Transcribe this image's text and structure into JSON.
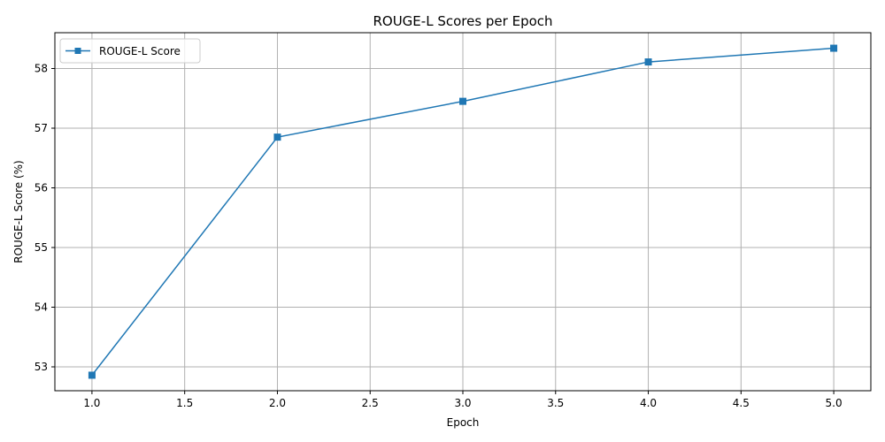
{
  "chart_data": {
    "type": "line",
    "title": "ROUGE-L Scores per Epoch",
    "xlabel": "Epoch",
    "ylabel": "ROUGE-L Score (%)",
    "x": [
      1,
      2,
      3,
      4,
      5
    ],
    "series": [
      {
        "name": "ROUGE-L Score",
        "values": [
          52.86,
          56.85,
          57.45,
          58.11,
          58.34
        ],
        "color": "#1f77b4",
        "marker": "square"
      }
    ],
    "xlim": [
      0.8,
      5.2
    ],
    "ylim": [
      52.6,
      58.6
    ],
    "xticks": [
      1.0,
      1.5,
      2.0,
      2.5,
      3.0,
      3.5,
      4.0,
      4.5,
      5.0
    ],
    "xtick_labels": [
      "1.0",
      "1.5",
      "2.0",
      "2.5",
      "3.0",
      "3.5",
      "4.0",
      "4.5",
      "5.0"
    ],
    "yticks": [
      53,
      54,
      55,
      56,
      57,
      58
    ],
    "ytick_labels": [
      "53",
      "54",
      "55",
      "56",
      "57",
      "58"
    ],
    "grid": true,
    "legend_position": "top-left"
  }
}
